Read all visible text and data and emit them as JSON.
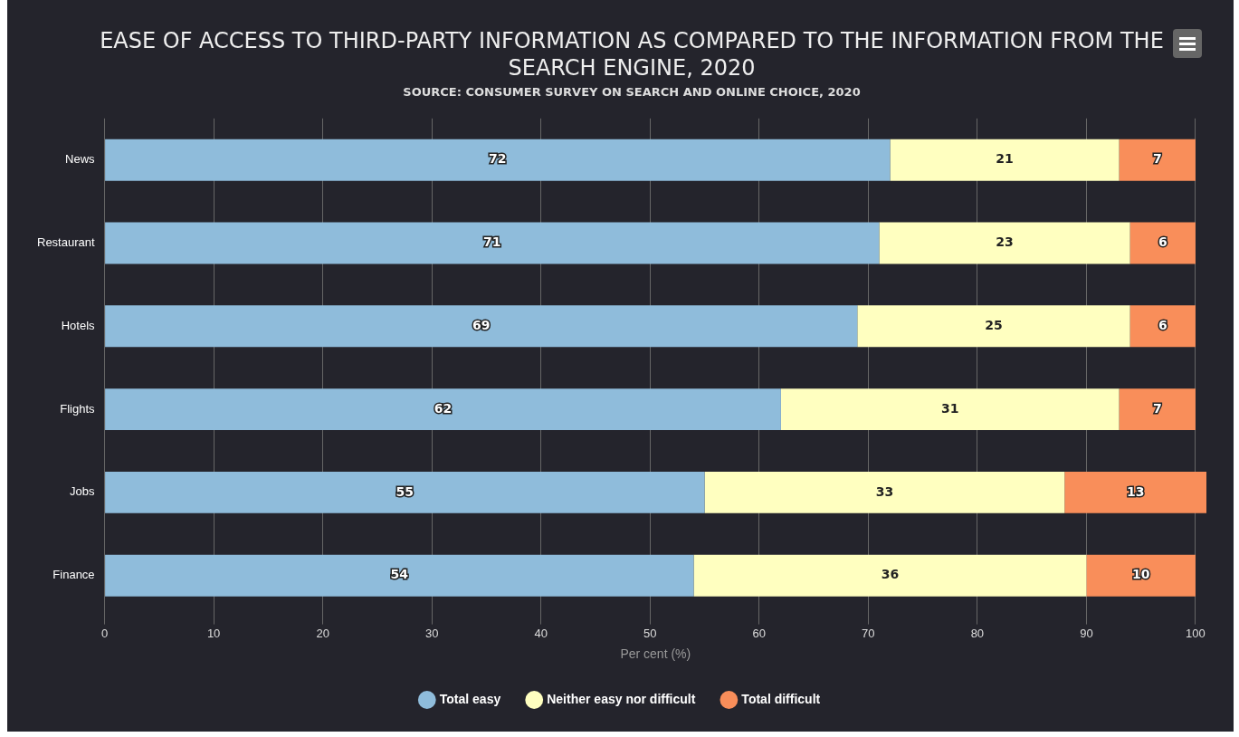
{
  "chart_data": {
    "type": "bar",
    "orientation": "horizontal",
    "stacked": true,
    "title": "EASE OF ACCESS TO THIRD-PARTY INFORMATION AS COMPARED TO THE INFORMATION FROM THE SEARCH ENGINE, 2020",
    "subtitle": "SOURCE: CONSUMER SURVEY ON SEARCH AND ONLINE CHOICE, 2020",
    "xlabel": "Per cent (%)",
    "categories": [
      "News",
      "Restaurant",
      "Hotels",
      "Flights",
      "Jobs",
      "Finance"
    ],
    "series": [
      {
        "name": "Total easy",
        "color": "#8fbcdb",
        "values": [
          72,
          71,
          69,
          62,
          55,
          54
        ]
      },
      {
        "name": "Neither easy nor difficult",
        "color": "#ffffc0",
        "values": [
          21,
          23,
          25,
          31,
          33,
          36
        ]
      },
      {
        "name": "Total difficult",
        "color": "#f98e5a",
        "values": [
          7,
          6,
          6,
          7,
          13,
          10
        ]
      }
    ],
    "xlim": [
      0,
      101
    ],
    "xticks": [
      0,
      10,
      20,
      30,
      40,
      50,
      60,
      70,
      80,
      90,
      100
    ],
    "grid": "x",
    "legend": "bottom",
    "data_labels": true
  }
}
